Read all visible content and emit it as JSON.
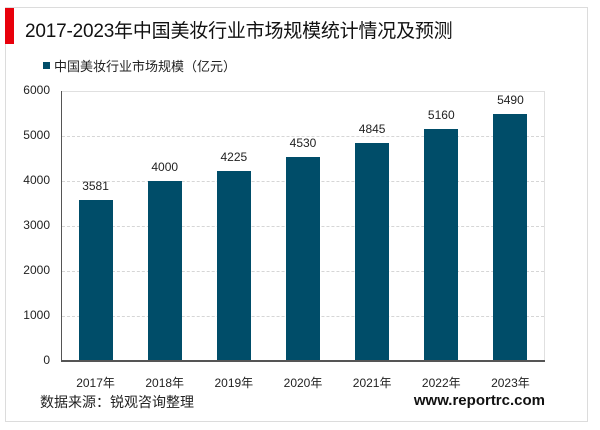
{
  "header": {
    "title": "2017-2023年中国美妆行业市场规模统计情况及预测",
    "accent_color": "#e8000b"
  },
  "legend": {
    "label": "中国美妆行业市场规模（亿元）",
    "color": "#004d69"
  },
  "footer": {
    "source": "数据来源：锐观咨询整理",
    "website": "www.reportrc.com"
  },
  "chart_data": {
    "type": "bar",
    "title": "2017-2023年中国美妆行业市场规模统计情况及预测",
    "categories": [
      "2017年",
      "2018年",
      "2019年",
      "2020年",
      "2021年",
      "2022年",
      "2023年"
    ],
    "series": [
      {
        "name": "中国美妆行业市场规模（亿元）",
        "values": [
          3581,
          4000,
          4225,
          4530,
          4845,
          5160,
          5490
        ],
        "color": "#004d69"
      }
    ],
    "values": [
      3581,
      4000,
      4225,
      4530,
      4845,
      5160,
      5490
    ],
    "xlabel": "",
    "ylabel": "",
    "ylim": [
      0,
      6000
    ],
    "yticks": [
      0,
      1000,
      2000,
      3000,
      4000,
      5000,
      6000
    ],
    "grid": true,
    "legend_position": "top-left",
    "data_labels": true
  }
}
